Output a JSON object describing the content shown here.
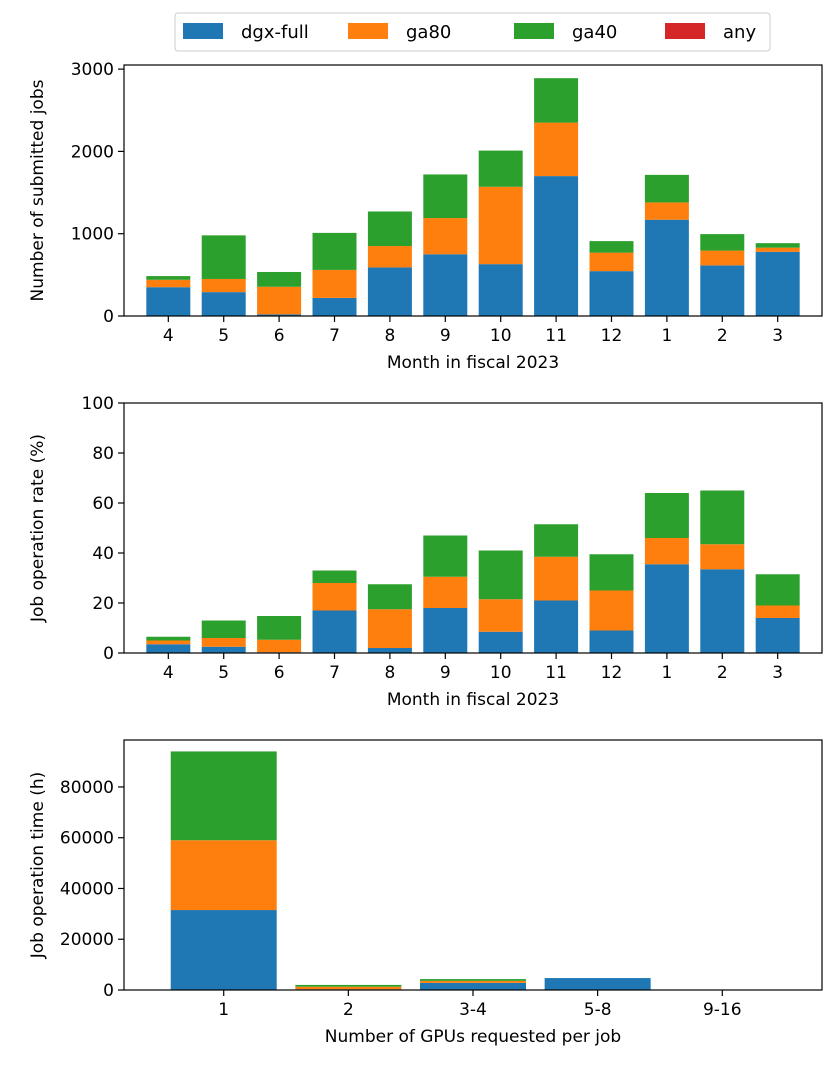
{
  "legend": {
    "placement": "top-center",
    "entries": [
      {
        "name": "dgx-full",
        "color": "#1f77b4"
      },
      {
        "name": "ga80",
        "color": "#ff7f0e"
      },
      {
        "name": "ga40",
        "color": "#2ca02c"
      },
      {
        "name": "any",
        "color": "#d62728"
      }
    ]
  },
  "chart_data": [
    {
      "type": "bar",
      "stacked": true,
      "xlabel": "Month in fiscal 2023",
      "ylabel": "Number of submitted jobs",
      "ylim": [
        0,
        3050
      ],
      "yticks": [
        0,
        1000,
        2000,
        3000
      ],
      "categories": [
        "4",
        "5",
        "6",
        "7",
        "8",
        "9",
        "10",
        "11",
        "12",
        "1",
        "2",
        "3"
      ],
      "series": [
        {
          "name": "dgx-full",
          "values": [
            350,
            290,
            20,
            220,
            590,
            750,
            630,
            1700,
            545,
            1170,
            615,
            780
          ]
        },
        {
          "name": "ga80",
          "values": [
            90,
            160,
            335,
            340,
            260,
            440,
            940,
            650,
            225,
            210,
            180,
            50
          ]
        },
        {
          "name": "ga40",
          "values": [
            45,
            530,
            180,
            450,
            420,
            530,
            440,
            540,
            140,
            335,
            200,
            55
          ]
        },
        {
          "name": "any",
          "values": [
            0,
            0,
            0,
            0,
            0,
            0,
            0,
            0,
            0,
            0,
            0,
            0
          ]
        }
      ]
    },
    {
      "type": "bar",
      "stacked": true,
      "xlabel": "Month in fiscal 2023",
      "ylabel": "Job operation rate (%)",
      "ylim": [
        0,
        100
      ],
      "yticks": [
        0,
        20,
        40,
        60,
        80,
        100
      ],
      "categories": [
        "4",
        "5",
        "6",
        "7",
        "8",
        "9",
        "10",
        "11",
        "12",
        "1",
        "2",
        "3"
      ],
      "series": [
        {
          "name": "dgx-full",
          "values": [
            3.5,
            2.5,
            0.3,
            17,
            2,
            18,
            8.5,
            21,
            9,
            35.5,
            33.5,
            14
          ]
        },
        {
          "name": "ga80",
          "values": [
            1.5,
            3.5,
            5,
            11,
            15.5,
            12.5,
            13,
            17.5,
            16,
            10.5,
            10,
            5
          ]
        },
        {
          "name": "ga40",
          "values": [
            1.5,
            7,
            9.5,
            5,
            10,
            16.5,
            19.5,
            13,
            14.5,
            18,
            21.5,
            12.5
          ]
        },
        {
          "name": "any",
          "values": [
            0,
            0,
            0,
            0,
            0,
            0,
            0,
            0,
            0,
            0,
            0,
            0
          ]
        }
      ]
    },
    {
      "type": "bar",
      "stacked": true,
      "xlabel": "Number of GPUs requested per job",
      "ylabel": "Job operation time (h)",
      "ylim": [
        0,
        98500
      ],
      "yticks": [
        0,
        20000,
        40000,
        60000,
        80000
      ],
      "categories": [
        "1",
        "2",
        "3-4",
        "5-8",
        "9-16"
      ],
      "series": [
        {
          "name": "dgx-full",
          "values": [
            31500,
            300,
            2800,
            4700,
            0
          ]
        },
        {
          "name": "ga80",
          "values": [
            27500,
            1000,
            800,
            0,
            0
          ]
        },
        {
          "name": "ga40",
          "values": [
            35000,
            700,
            700,
            0,
            0
          ]
        },
        {
          "name": "any",
          "values": [
            0,
            0,
            0,
            0,
            0
          ]
        }
      ]
    }
  ]
}
